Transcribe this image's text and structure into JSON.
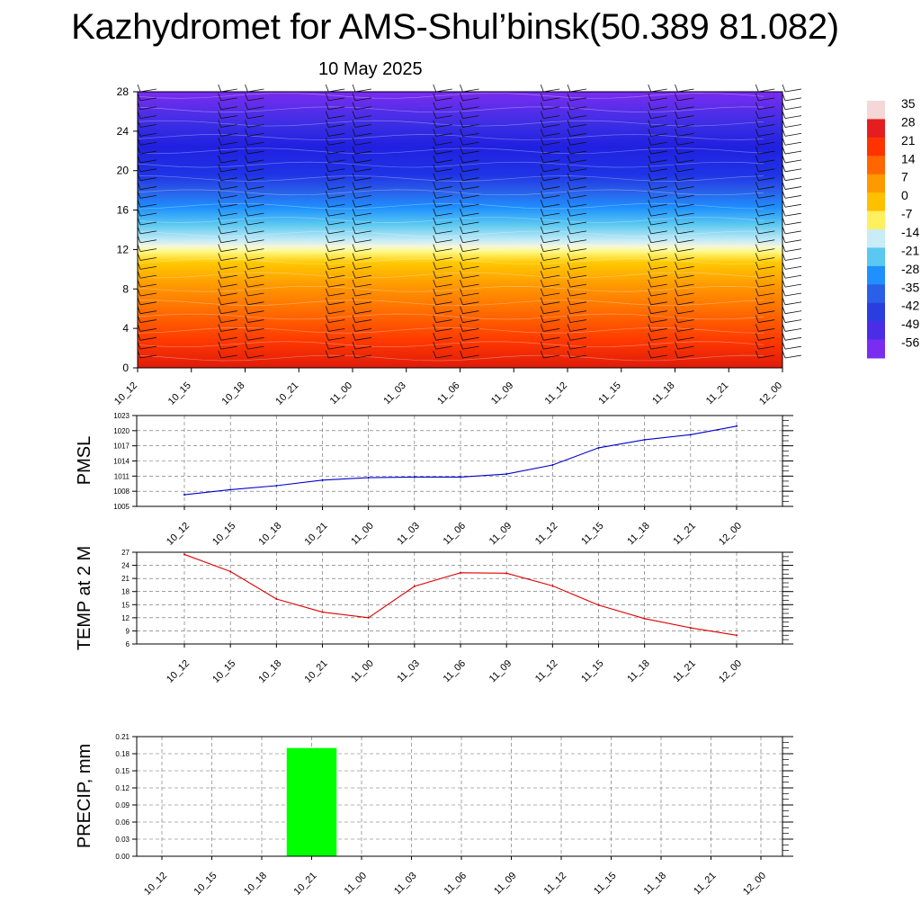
{
  "title": "Kazhydromet for AMS-Shul’binsk(50.389 81.082)",
  "subtitle": "10 May 2025",
  "time_labels": [
    "10_12",
    "10_15",
    "10_18",
    "10_21",
    "11_00",
    "11_03",
    "11_06",
    "11_09",
    "11_12",
    "11_15",
    "11_18",
    "11_21",
    "12_00"
  ],
  "colorbar": {
    "labels": [
      "35",
      "28",
      "21",
      "14",
      "7",
      "0",
      "-7",
      "-14",
      "-21",
      "-28",
      "-35",
      "-42",
      "-49",
      "-56"
    ],
    "colors": [
      "#f5d7d7",
      "#e41e1e",
      "#ff3300",
      "#ff6600",
      "#ff9900",
      "#ffc000",
      "#fff060",
      "#c9ecf7",
      "#5ac8f0",
      "#1e90ff",
      "#2a5fe8",
      "#2a3ee0",
      "#4b2de8",
      "#7a2cf0"
    ]
  },
  "chart_data": [
    {
      "type": "heatmap",
      "title": "",
      "ylabel": "",
      "y_ticks": [
        0,
        4,
        8,
        12,
        16,
        20,
        24,
        28
      ],
      "ylim": [
        0,
        28
      ],
      "x_categories": [
        "10_12",
        "10_15",
        "10_18",
        "10_21",
        "11_00",
        "11_03",
        "11_06",
        "11_09",
        "11_12",
        "11_15",
        "11_18",
        "11_21",
        "12_00"
      ],
      "colorbar_range": [
        -56,
        35
      ],
      "colors": {
        "low": "#7a2cf0",
        "mid": "#1f33e6",
        "freeze": "#fffaa0",
        "warm": "#ffa000",
        "hot": "#e61e0a"
      }
    },
    {
      "type": "line",
      "ylabel": "PMSL",
      "categories": [
        "10_12",
        "10_15",
        "10_18",
        "10_21",
        "11_00",
        "11_03",
        "11_06",
        "11_09",
        "11_12",
        "11_15",
        "11_18",
        "11_21",
        "12_00"
      ],
      "values": [
        1007.3,
        1008.3,
        1009.1,
        1010.2,
        1010.7,
        1010.8,
        1010.8,
        1011.4,
        1013.2,
        1016.6,
        1018.2,
        1019.2,
        1020.9
      ],
      "y_ticks": [
        1005,
        1008,
        1011,
        1014,
        1017,
        1020,
        1023
      ],
      "ylim": [
        1005,
        1023
      ],
      "color": "#0000cc",
      "grid": true
    },
    {
      "type": "line",
      "ylabel": "TEMP at 2 M",
      "categories": [
        "10_12",
        "10_15",
        "10_18",
        "10_21",
        "11_00",
        "11_03",
        "11_06",
        "11_09",
        "11_12",
        "11_15",
        "11_18",
        "11_21",
        "12_00"
      ],
      "values": [
        26.5,
        22.6,
        16.3,
        13.3,
        12.0,
        19.2,
        22.3,
        22.2,
        19.3,
        14.9,
        11.8,
        9.7,
        8.0
      ],
      "y_ticks": [
        6,
        9,
        12,
        15,
        18,
        21,
        24,
        27
      ],
      "ylim": [
        6,
        27
      ],
      "color": "#dd0000",
      "grid": true
    },
    {
      "type": "bar",
      "ylabel": "PRECIP, mm",
      "categories": [
        "10_12",
        "10_15",
        "10_18",
        "10_21",
        "11_00",
        "11_03",
        "11_06",
        "11_09",
        "11_12",
        "11_15",
        "11_18",
        "11_21",
        "12_00"
      ],
      "values": [
        0,
        0,
        0,
        0.19,
        0,
        0,
        0,
        0,
        0,
        0,
        0,
        0,
        0
      ],
      "y_ticks": [
        "0.00",
        "0.03",
        "0.06",
        "0.09",
        "0.12",
        "0.15",
        "0.18",
        "0.21"
      ],
      "ylim": [
        0,
        0.21
      ],
      "color": "#00ff00",
      "grid": true
    }
  ]
}
